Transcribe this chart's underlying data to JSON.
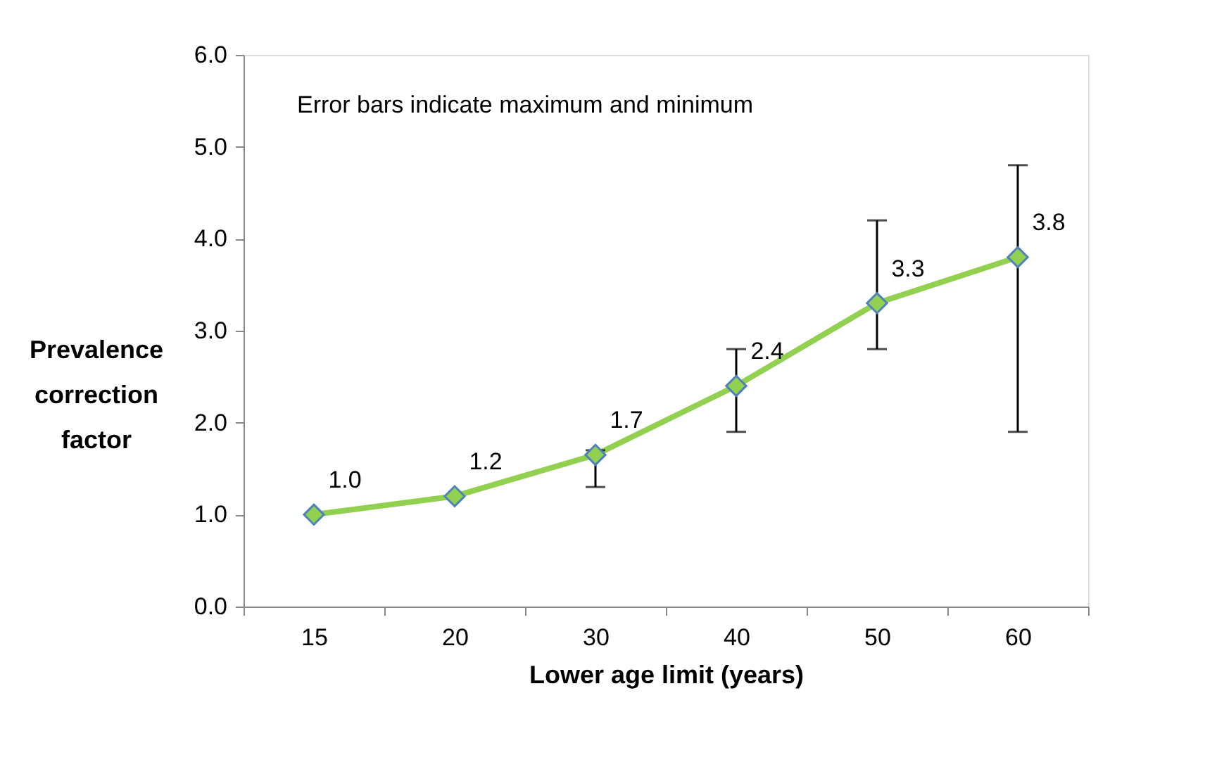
{
  "chart_data": {
    "type": "line",
    "xlabel": "Lower age limit (years)",
    "ylabel": "Prevalence correction factor",
    "categories": [
      "15",
      "20",
      "30",
      "40",
      "50",
      "60"
    ],
    "series": [
      {
        "color": "#92d050",
        "values": [
          1.0,
          1.2,
          1.65,
          2.4,
          3.3,
          3.8
        ],
        "value_labels": [
          "1.0",
          "1.2",
          "1.7",
          "2.4",
          "3.3",
          "3.8"
        ],
        "errors": [
          null,
          null,
          [
            1.3,
            1.7
          ],
          [
            1.9,
            2.8
          ],
          [
            2.8,
            4.2
          ],
          [
            1.9,
            4.8
          ]
        ]
      }
    ],
    "marker": "diamond",
    "line_style": "solid",
    "ylim": [
      0,
      6
    ],
    "yticks": [
      {
        "value": 0,
        "label": "0.0"
      },
      {
        "value": 1,
        "label": "1.0"
      },
      {
        "value": 2,
        "label": "2.0"
      },
      {
        "value": 3,
        "label": "3.0"
      },
      {
        "value": 4,
        "label": "4.0"
      },
      {
        "value": 5,
        "label": "5.0"
      },
      {
        "value": 6,
        "label": "6.0"
      }
    ],
    "grid": false,
    "annotations": [
      "Error bars indicate maximum and minimum"
    ]
  }
}
